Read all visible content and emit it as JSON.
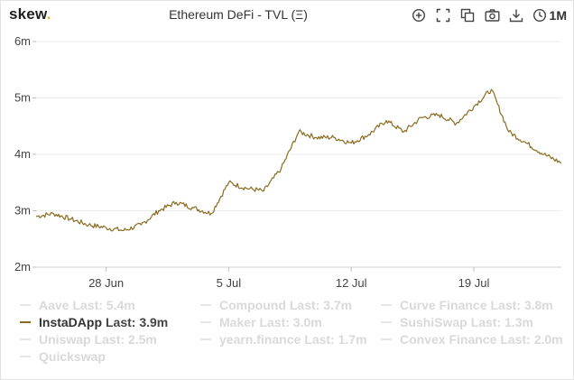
{
  "header": {
    "logo_text": "skew",
    "logo_dot": ".",
    "title": "Ethereum DeFi - TVL (Ξ)",
    "range_label": "1M",
    "tools": [
      "zoom-in-icon",
      "fullscreen-icon",
      "copy-icon",
      "camera-icon",
      "download-icon",
      "clock-icon"
    ]
  },
  "colors": {
    "line": "#8b6b1f",
    "grid": "#ebebeb",
    "dot": "#e0b53a"
  },
  "legend": [
    {
      "name": "Aave",
      "last": "Last: 5.4m",
      "active": false
    },
    {
      "name": "Compound",
      "last": "Last: 3.7m",
      "active": false
    },
    {
      "name": "Curve Finance",
      "last": "Last: 3.8m",
      "active": false
    },
    {
      "name": "InstaDApp",
      "last": "Last: 3.9m",
      "active": true
    },
    {
      "name": "Maker",
      "last": "Last: 3.0m",
      "active": false
    },
    {
      "name": "SushiSwap",
      "last": "Last: 1.3m",
      "active": false
    },
    {
      "name": "Uniswap",
      "last": "Last: 2.5m",
      "active": false
    },
    {
      "name": "yearn.finance",
      "last": "Last: 1.7m",
      "active": false
    },
    {
      "name": "Convex Finance",
      "last": "Last: 2.0m",
      "active": false
    },
    {
      "name": "Quickswap",
      "last": "",
      "active": false
    }
  ],
  "chart_data": {
    "type": "line",
    "title": "Ethereum DeFi - TVL (Ξ)",
    "xlabel": "",
    "ylabel": "",
    "y_unit": "m",
    "ylim": [
      2,
      6
    ],
    "yticks": [
      2,
      3,
      4,
      5,
      6
    ],
    "ytick_labels": [
      "2m",
      "3m",
      "4m",
      "5m",
      "6m"
    ],
    "xlim": [
      "2021-06-24",
      "2021-07-24"
    ],
    "xticks": [
      "2021-06-28",
      "2021-07-05",
      "2021-07-12",
      "2021-07-19"
    ],
    "xtick_labels": [
      "28 Jun",
      "5 Jul",
      "12 Jul",
      "19 Jul"
    ],
    "grid": "horizontal",
    "series": [
      {
        "name": "InstaDApp",
        "x": [
          "2021-06-24",
          "2021-06-25",
          "2021-06-26",
          "2021-06-27",
          "2021-06-28",
          "2021-06-29",
          "2021-06-30",
          "2021-07-01",
          "2021-07-02",
          "2021-07-03",
          "2021-07-04",
          "2021-07-05",
          "2021-07-06",
          "2021-07-07",
          "2021-07-08",
          "2021-07-09",
          "2021-07-10",
          "2021-07-11",
          "2021-07-12",
          "2021-07-13",
          "2021-07-14",
          "2021-07-15",
          "2021-07-16",
          "2021-07-17",
          "2021-07-18",
          "2021-07-19",
          "2021-07-20",
          "2021-07-21",
          "2021-07-22",
          "2021-07-23",
          "2021-07-24"
        ],
        "values": [
          2.9,
          2.95,
          2.85,
          2.75,
          2.7,
          2.65,
          2.75,
          3.0,
          3.15,
          3.05,
          2.95,
          3.5,
          3.4,
          3.35,
          3.75,
          4.4,
          4.3,
          4.3,
          4.2,
          4.35,
          4.6,
          4.4,
          4.65,
          4.7,
          4.55,
          4.85,
          5.15,
          4.4,
          4.2,
          4.0,
          3.85
        ]
      }
    ]
  }
}
